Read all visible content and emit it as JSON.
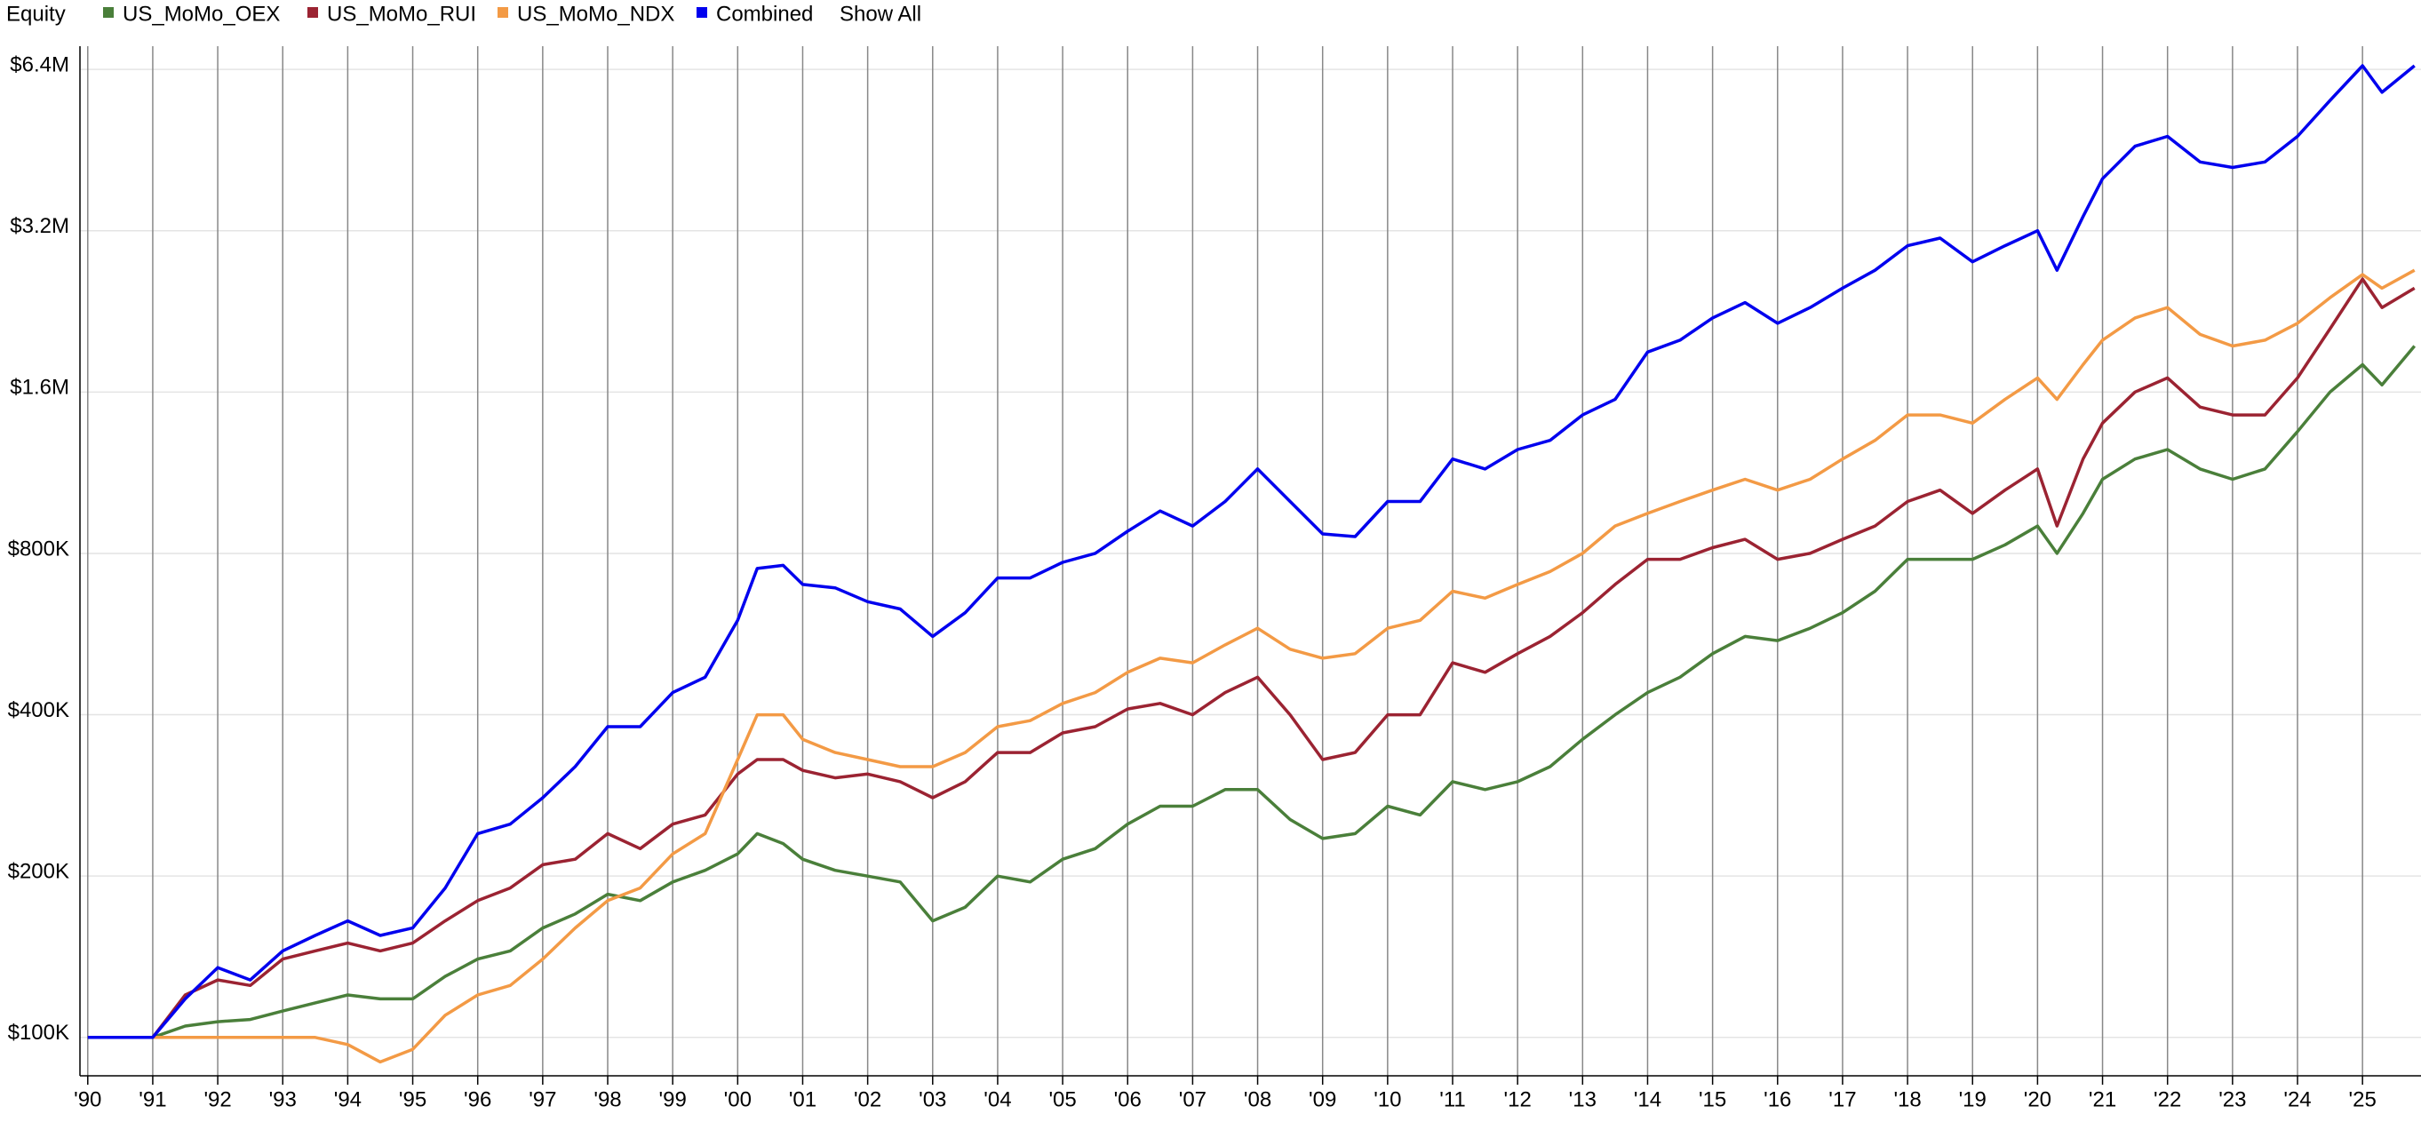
{
  "chart_data": {
    "type": "line",
    "legend_title": "Equity",
    "legend_action": "Show All",
    "log_scale": true,
    "grid": true,
    "legend_position": "top-left",
    "x": [
      1990,
      1991,
      1991.5,
      1992,
      1992.5,
      1993,
      1993.5,
      1994,
      1994.5,
      1995,
      1995.5,
      1996,
      1996.5,
      1997,
      1997.5,
      1998,
      1998.5,
      1999,
      1999.5,
      2000,
      2000.3,
      2000.7,
      2001,
      2001.5,
      2002,
      2002.5,
      2003,
      2003.5,
      2004,
      2004.5,
      2005,
      2005.5,
      2006,
      2006.5,
      2007,
      2007.5,
      2008,
      2008.5,
      2009,
      2009.5,
      2010,
      2010.5,
      2011,
      2011.5,
      2012,
      2012.5,
      2013,
      2013.5,
      2014,
      2014.5,
      2015,
      2015.5,
      2016,
      2016.5,
      2017,
      2017.5,
      2018,
      2018.5,
      2019,
      2019.5,
      2020,
      2020.3,
      2020.7,
      2021,
      2021.5,
      2022,
      2022.5,
      2023,
      2023.5,
      2024,
      2024.5,
      2025,
      2025.3,
      2025.8
    ],
    "series": [
      {
        "name": "US_MoMo_OEX",
        "color": "#4a7f3a",
        "values": [
          100000,
          100000,
          105000,
          107000,
          108000,
          112000,
          116000,
          120000,
          118000,
          118000,
          130000,
          140000,
          145000,
          160000,
          170000,
          185000,
          180000,
          195000,
          205000,
          220000,
          240000,
          230000,
          215000,
          205000,
          200000,
          195000,
          165000,
          175000,
          200000,
          195000,
          215000,
          225000,
          250000,
          270000,
          270000,
          290000,
          290000,
          255000,
          235000,
          240000,
          270000,
          260000,
          300000,
          290000,
          300000,
          320000,
          360000,
          400000,
          440000,
          470000,
          520000,
          560000,
          550000,
          580000,
          620000,
          680000,
          780000,
          780000,
          780000,
          830000,
          900000,
          800000,
          950000,
          1100000,
          1200000,
          1250000,
          1150000,
          1100000,
          1150000,
          1350000,
          1600000,
          1800000,
          1650000,
          1950000
        ]
      },
      {
        "name": "US_MoMo_RUI",
        "color": "#9b2332",
        "values": [
          100000,
          100000,
          120000,
          128000,
          125000,
          140000,
          145000,
          150000,
          145000,
          150000,
          165000,
          180000,
          190000,
          210000,
          215000,
          240000,
          225000,
          250000,
          260000,
          310000,
          330000,
          330000,
          315000,
          305000,
          310000,
          300000,
          280000,
          300000,
          340000,
          340000,
          370000,
          380000,
          410000,
          420000,
          400000,
          440000,
          470000,
          400000,
          330000,
          340000,
          400000,
          400000,
          500000,
          480000,
          520000,
          560000,
          620000,
          700000,
          780000,
          780000,
          820000,
          850000,
          780000,
          800000,
          850000,
          900000,
          1000000,
          1050000,
          950000,
          1050000,
          1150000,
          900000,
          1200000,
          1400000,
          1600000,
          1700000,
          1500000,
          1450000,
          1450000,
          1700000,
          2100000,
          2600000,
          2300000,
          2500000
        ]
      },
      {
        "name": "US_MoMo_NDX",
        "color": "#f39a45",
        "values": [
          100000,
          100000,
          100000,
          100000,
          100000,
          100000,
          100000,
          97000,
          90000,
          95000,
          110000,
          120000,
          125000,
          140000,
          160000,
          180000,
          190000,
          220000,
          240000,
          330000,
          400000,
          400000,
          360000,
          340000,
          330000,
          320000,
          320000,
          340000,
          380000,
          390000,
          420000,
          440000,
          480000,
          510000,
          500000,
          540000,
          580000,
          530000,
          510000,
          520000,
          580000,
          600000,
          680000,
          660000,
          700000,
          740000,
          800000,
          900000,
          950000,
          1000000,
          1050000,
          1100000,
          1050000,
          1100000,
          1200000,
          1300000,
          1450000,
          1450000,
          1400000,
          1550000,
          1700000,
          1550000,
          1800000,
          2000000,
          2200000,
          2300000,
          2050000,
          1950000,
          2000000,
          2150000,
          2400000,
          2650000,
          2500000,
          2700000
        ]
      },
      {
        "name": "Combined",
        "color": "#0000ee",
        "values": [
          100000,
          100000,
          118000,
          135000,
          128000,
          145000,
          155000,
          165000,
          155000,
          160000,
          190000,
          240000,
          250000,
          280000,
          320000,
          380000,
          380000,
          440000,
          470000,
          600000,
          750000,
          760000,
          700000,
          690000,
          650000,
          630000,
          560000,
          620000,
          720000,
          720000,
          770000,
          800000,
          880000,
          960000,
          900000,
          1000000,
          1150000,
          1000000,
          870000,
          860000,
          1000000,
          1000000,
          1200000,
          1150000,
          1250000,
          1300000,
          1450000,
          1550000,
          1900000,
          2000000,
          2200000,
          2350000,
          2150000,
          2300000,
          2500000,
          2700000,
          3000000,
          3100000,
          2800000,
          3000000,
          3200000,
          2700000,
          3400000,
          4000000,
          4600000,
          4800000,
          4300000,
          4200000,
          4300000,
          4800000,
          5600000,
          6500000,
          5800000,
          6500000
        ]
      }
    ],
    "xlim": [
      1989.88,
      2025.9
    ],
    "ylim": [
      84800,
      7070000
    ],
    "xticks": [
      {
        "value": 1990,
        "label": "'90"
      },
      {
        "value": 1991,
        "label": "'91"
      },
      {
        "value": 1992,
        "label": "'92"
      },
      {
        "value": 1993,
        "label": "'93"
      },
      {
        "value": 1994,
        "label": "'94"
      },
      {
        "value": 1995,
        "label": "'95"
      },
      {
        "value": 1996,
        "label": "'96"
      },
      {
        "value": 1997,
        "label": "'97"
      },
      {
        "value": 1998,
        "label": "'98"
      },
      {
        "value": 1999,
        "label": "'99"
      },
      {
        "value": 2000,
        "label": "'00"
      },
      {
        "value": 2001,
        "label": "'01"
      },
      {
        "value": 2002,
        "label": "'02"
      },
      {
        "value": 2003,
        "label": "'03"
      },
      {
        "value": 2004,
        "label": "'04"
      },
      {
        "value": 2005,
        "label": "'05"
      },
      {
        "value": 2006,
        "label": "'06"
      },
      {
        "value": 2007,
        "label": "'07"
      },
      {
        "value": 2008,
        "label": "'08"
      },
      {
        "value": 2009,
        "label": "'09"
      },
      {
        "value": 2010,
        "label": "'10"
      },
      {
        "value": 2011,
        "label": "'11"
      },
      {
        "value": 2012,
        "label": "'12"
      },
      {
        "value": 2013,
        "label": "'13"
      },
      {
        "value": 2014,
        "label": "'14"
      },
      {
        "value": 2015,
        "label": "'15"
      },
      {
        "value": 2016,
        "label": "'16"
      },
      {
        "value": 2017,
        "label": "'17"
      },
      {
        "value": 2018,
        "label": "'18"
      },
      {
        "value": 2019,
        "label": "'19"
      },
      {
        "value": 2020,
        "label": "'20"
      },
      {
        "value": 2021,
        "label": "'21"
      },
      {
        "value": 2022,
        "label": "'22"
      },
      {
        "value": 2023,
        "label": "'23"
      },
      {
        "value": 2024,
        "label": "'24"
      },
      {
        "value": 2025,
        "label": "'25"
      }
    ],
    "yticks": [
      {
        "value": 100000,
        "label": "$100K"
      },
      {
        "value": 200000,
        "label": "$200K"
      },
      {
        "value": 400000,
        "label": "$400K"
      },
      {
        "value": 800000,
        "label": "$800K"
      },
      {
        "value": 1600000,
        "label": "$1.6M"
      },
      {
        "value": 3200000,
        "label": "$3.2M"
      },
      {
        "value": 6400000,
        "label": "$6.4M"
      }
    ]
  }
}
